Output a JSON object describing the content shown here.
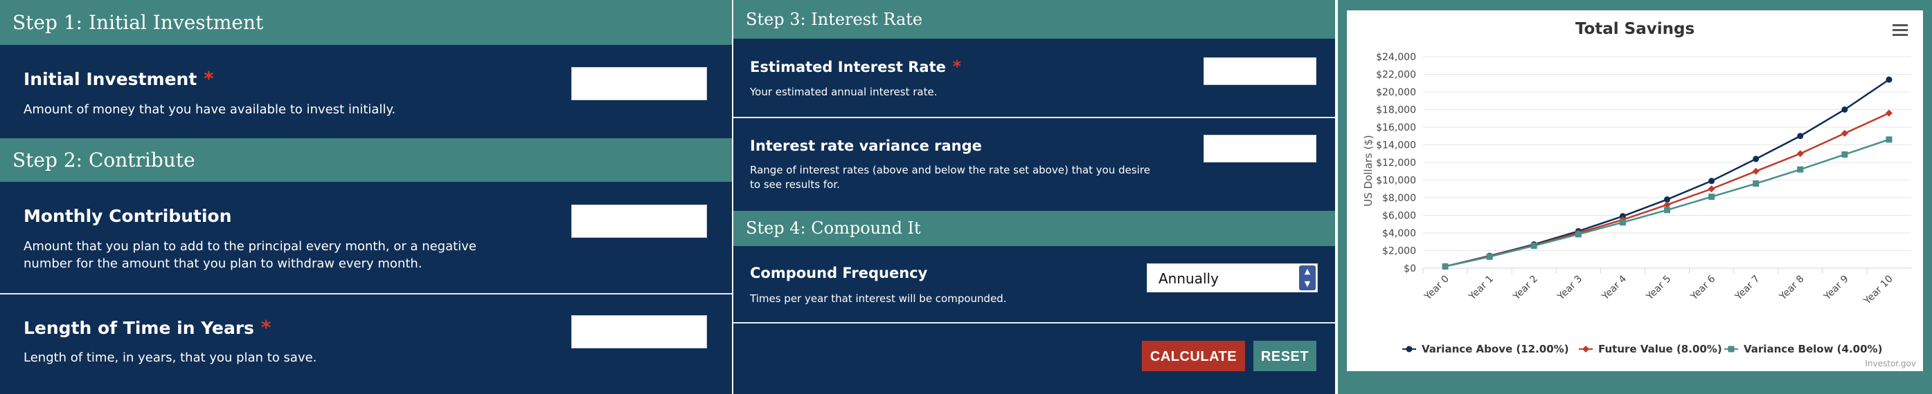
{
  "step1": {
    "header": "Step 1: Initial Investment",
    "label": "Initial Investment",
    "required_mark": "*",
    "description": "Amount of money that you have available to invest initially.",
    "value": ""
  },
  "step2": {
    "header": "Step 2: Contribute",
    "monthly_label": "Monthly Contribution",
    "monthly_desc_line1": "Amount that you plan to add to the principal every month, or a negative",
    "monthly_desc_line2": "number for the amount that you plan to withdraw every month.",
    "monthly_value": "",
    "years_label": "Length of Time in Years",
    "years_required_mark": "*",
    "years_desc": "Length of time, in years, that you plan to save.",
    "years_value": ""
  },
  "step3": {
    "header": "Step 3: Interest Rate",
    "rate_label": "Estimated Interest Rate",
    "rate_required_mark": "*",
    "rate_desc": "Your estimated annual interest rate.",
    "rate_value": "",
    "variance_label": "Interest rate variance range",
    "variance_desc_line1": "Range of interest rates (above and below the rate set above) that you desire",
    "variance_desc_line2": "to see results for.",
    "variance_value": ""
  },
  "step4": {
    "header": "Step 4: Compound It",
    "freq_label": "Compound Frequency",
    "freq_desc": "Times per year that interest will be compounded.",
    "freq_selected": "Annually"
  },
  "buttons": {
    "calculate": "CALCULATE",
    "reset": "RESET"
  },
  "chart_data": {
    "type": "line",
    "title": "Total Savings",
    "ylabel": "US Dollars ($)",
    "xlabel": "",
    "categories": [
      "Year 0",
      "Year 1",
      "Year 2",
      "Year 3",
      "Year 4",
      "Year 5",
      "Year 6",
      "Year 7",
      "Year 8",
      "Year 9",
      "Year 10"
    ],
    "yticks": [
      "$0",
      "$2,000",
      "$4,000",
      "$6,000",
      "$8,000",
      "$10,000",
      "$12,000",
      "$14,000",
      "$16,000",
      "$18,000",
      "$20,000",
      "$22,000",
      "$24,000"
    ],
    "ylim": [
      0,
      24000
    ],
    "series": [
      {
        "name": "Variance Above (12.00%)",
        "color": "#0f2e55",
        "marker": "circle",
        "values": [
          200,
          1400,
          2700,
          4200,
          5900,
          7800,
          9900,
          12400,
          15000,
          18000,
          21400
        ]
      },
      {
        "name": "Future Value (8.00%)",
        "color": "#c0392b",
        "marker": "diamond",
        "values": [
          200,
          1350,
          2600,
          4000,
          5500,
          7200,
          9000,
          11000,
          13000,
          15300,
          17600
        ]
      },
      {
        "name": "Variance Below (4.00%)",
        "color": "#4a8e8a",
        "marker": "square",
        "values": [
          200,
          1300,
          2550,
          3850,
          5200,
          6600,
          8100,
          9600,
          11200,
          12900,
          14600
        ]
      }
    ],
    "legend_position": "bottom",
    "credit": "Investor.gov",
    "menu_icon": "hamburger-menu-icon"
  }
}
